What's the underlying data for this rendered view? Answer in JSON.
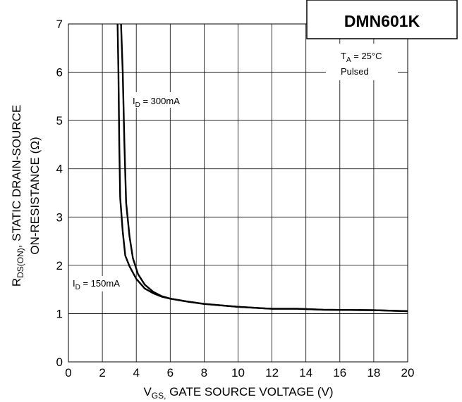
{
  "chart_data": {
    "type": "line",
    "title": "DMN601K",
    "xlabel": {
      "main": "V",
      "sub": "GS,",
      "rest": " GATE SOURCE VOLTAGE (V)"
    },
    "ylabel": {
      "line1_main": "R",
      "line1_sub": "DS(ON)",
      "line1_rest": ", STATIC DRAIN-SOURCE",
      "line2": "ON-RESISTANCE (Ω)"
    },
    "xlim": [
      0,
      20
    ],
    "ylim": [
      0,
      7
    ],
    "xticks": [
      "0",
      "2",
      "4",
      "6",
      "8",
      "10",
      "12",
      "14",
      "16",
      "18",
      "20"
    ],
    "yticks": [
      "0",
      "1",
      "2",
      "3",
      "4",
      "5",
      "6",
      "7"
    ],
    "grid": true,
    "conditions": {
      "ta_main": "T",
      "ta_sub": "A",
      "ta_rest": " = 25°C",
      "mode": "Pulsed"
    },
    "series": [
      {
        "label_main": "I",
        "label_sub": "D",
        "label_rest": " = 300mA",
        "values": [
          [
            3.1,
            7.0
          ],
          [
            3.2,
            6.0
          ],
          [
            3.3,
            4.5
          ],
          [
            3.4,
            3.3
          ],
          [
            3.6,
            2.6
          ],
          [
            3.8,
            2.15
          ],
          [
            4.1,
            1.82
          ],
          [
            4.5,
            1.6
          ],
          [
            5.0,
            1.45
          ],
          [
            5.5,
            1.36
          ],
          [
            6,
            1.31
          ],
          [
            7,
            1.25
          ],
          [
            8,
            1.2
          ],
          [
            10,
            1.14
          ],
          [
            12,
            1.1
          ],
          [
            13.5,
            1.1
          ],
          [
            15,
            1.08
          ],
          [
            18,
            1.07
          ],
          [
            20,
            1.05
          ]
        ]
      },
      {
        "label_main": "I",
        "label_sub": "D",
        "label_rest": " = 150mA",
        "values": [
          [
            2.9,
            7.0
          ],
          [
            2.95,
            6.0
          ],
          [
            3.0,
            4.5
          ],
          [
            3.05,
            3.4
          ],
          [
            3.2,
            2.7
          ],
          [
            3.35,
            2.2
          ],
          [
            3.6,
            1.98
          ],
          [
            4.0,
            1.72
          ],
          [
            4.5,
            1.52
          ],
          [
            5.0,
            1.42
          ],
          [
            5.5,
            1.35
          ],
          [
            6,
            1.31
          ],
          [
            7,
            1.25
          ],
          [
            8,
            1.2
          ],
          [
            10,
            1.14
          ],
          [
            12,
            1.1
          ],
          [
            13.5,
            1.1
          ],
          [
            15,
            1.08
          ],
          [
            18,
            1.07
          ],
          [
            20,
            1.05
          ]
        ]
      }
    ]
  }
}
